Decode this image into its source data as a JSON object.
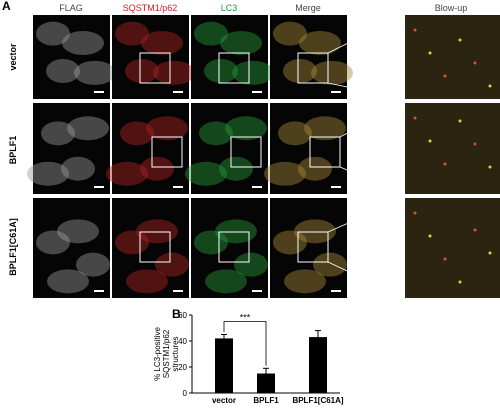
{
  "panel_labels": [
    "A",
    "B"
  ],
  "columns": [
    "FLAG",
    "SQSTM1/p62",
    "LC3",
    "Merge",
    "Blow-up"
  ],
  "rows": [
    "vector",
    "BPLF1",
    "BPLF1[C61A]"
  ],
  "chart_data": {
    "type": "bar",
    "y_label": [
      "% LC3-positive",
      "SQSTM1/p62",
      "structures"
    ],
    "categories": [
      "vector",
      "BPLF1",
      "BPLF1[C61A]"
    ],
    "values": [
      42,
      15,
      43
    ],
    "errors": [
      3,
      4,
      5
    ],
    "color": "#000000",
    "ylim": [
      0,
      60
    ],
    "yticks": [
      0,
      20,
      40,
      60
    ],
    "annotation": "***"
  }
}
